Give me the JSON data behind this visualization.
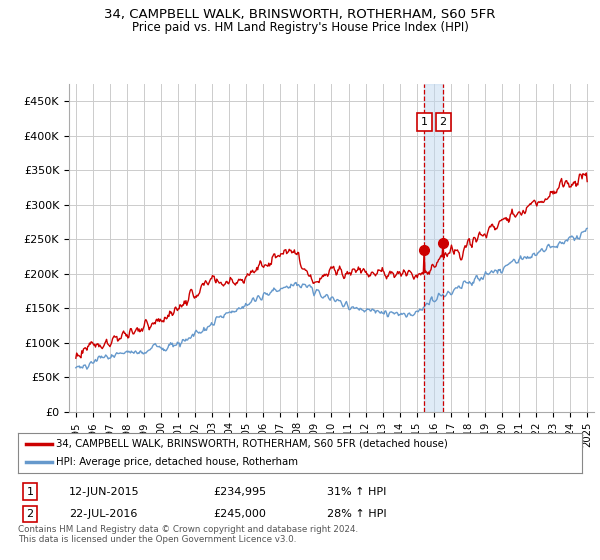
{
  "title": "34, CAMPBELL WALK, BRINSWORTH, ROTHERHAM, S60 5FR",
  "subtitle": "Price paid vs. HM Land Registry's House Price Index (HPI)",
  "red_label": "34, CAMPBELL WALK, BRINSWORTH, ROTHERHAM, S60 5FR (detached house)",
  "blue_label": "HPI: Average price, detached house, Rotherham",
  "annotation1_label": "1",
  "annotation1_date": "12-JUN-2015",
  "annotation1_price": "£234,995",
  "annotation1_hpi": "31% ↑ HPI",
  "annotation2_label": "2",
  "annotation2_date": "22-JUL-2016",
  "annotation2_price": "£245,000",
  "annotation2_hpi": "28% ↑ HPI",
  "footer": "Contains HM Land Registry data © Crown copyright and database right 2024.\nThis data is licensed under the Open Government Licence v3.0.",
  "ylim": [
    0,
    475000
  ],
  "yticks": [
    0,
    50000,
    100000,
    150000,
    200000,
    250000,
    300000,
    350000,
    400000,
    450000
  ],
  "ytick_labels": [
    "£0",
    "£50K",
    "£100K",
    "£150K",
    "£200K",
    "£250K",
    "£300K",
    "£350K",
    "£400K",
    "£450K"
  ],
  "red_color": "#cc0000",
  "blue_color": "#6699cc",
  "vline_color": "#cc0000",
  "vshade_color": "#c0d8f0",
  "background_color": "#ffffff",
  "grid_color": "#cccccc",
  "point1_x": 2015.44,
  "point1_y": 234995,
  "point2_x": 2016.55,
  "point2_y": 245000,
  "xlim_left": 1994.6,
  "xlim_right": 2025.4
}
